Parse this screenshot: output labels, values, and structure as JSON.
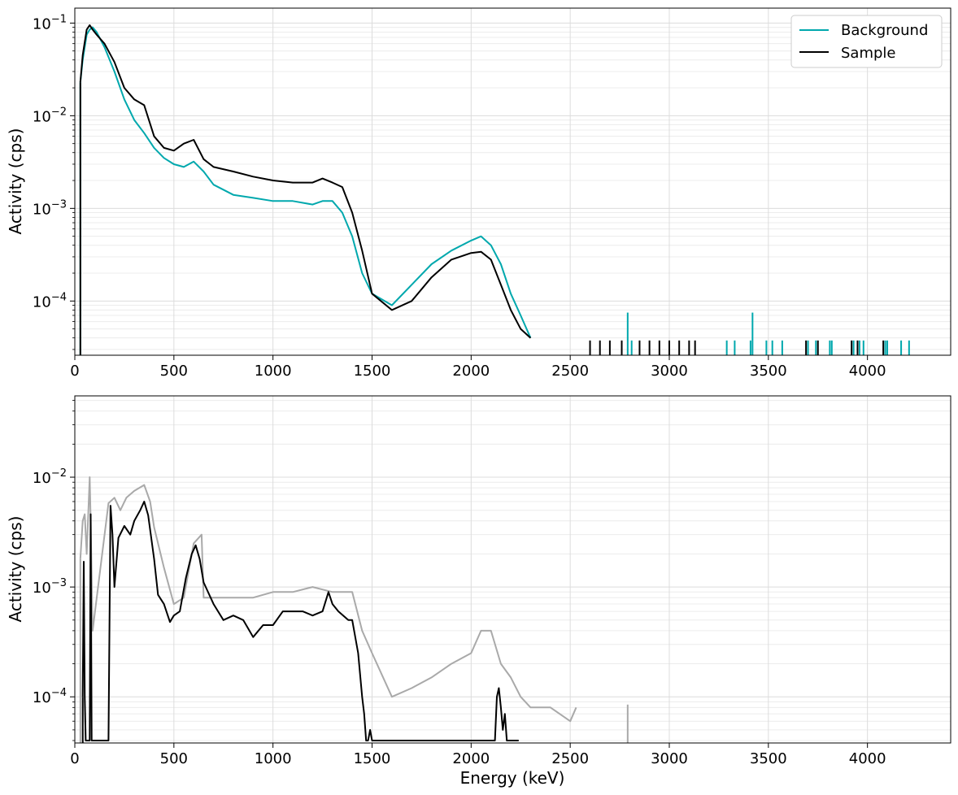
{
  "chart_data": [
    {
      "type": "line",
      "panel": "top",
      "xlabel": "",
      "ylabel": "Activity (cps)",
      "xlim": [
        0,
        4420
      ],
      "ylim": [
        2.6e-05,
        0.145
      ],
      "yscale": "log",
      "grid": true,
      "legend": "top-right",
      "x_ticks": [
        "0",
        "500",
        "1000",
        "1500",
        "2000",
        "2500",
        "3000",
        "3500",
        "4000"
      ],
      "y_ticks": [
        {
          "base": "10",
          "exp": "−1"
        },
        {
          "base": "10",
          "exp": "−2"
        },
        {
          "base": "10",
          "exp": "−3"
        },
        {
          "base": "10",
          "exp": "−4"
        }
      ],
      "series": [
        {
          "name": "Background",
          "color": "#00a8ad",
          "x": [
            28,
            40,
            60,
            75,
            90,
            110,
            150,
            200,
            250,
            300,
            350,
            400,
            450,
            500,
            550,
            600,
            650,
            700,
            800,
            900,
            1000,
            1100,
            1200,
            1250,
            1300,
            1350,
            1400,
            1450,
            1500,
            1600,
            1700,
            1800,
            1900,
            2000,
            2050,
            2100,
            2150,
            2200,
            2250,
            2300
          ],
          "values": [
            0.023,
            0.04,
            0.075,
            0.085,
            0.09,
            0.08,
            0.055,
            0.03,
            0.015,
            0.009,
            0.0065,
            0.0045,
            0.0035,
            0.003,
            0.0028,
            0.0032,
            0.0025,
            0.0018,
            0.0014,
            0.0013,
            0.0012,
            0.0012,
            0.0011,
            0.0012,
            0.0012,
            0.0009,
            0.0005,
            0.0002,
            0.00012,
            9e-05,
            0.00015,
            0.00025,
            0.00035,
            0.00045,
            0.0005,
            0.0004,
            0.00025,
            0.00012,
            7e-05,
            4e-05
          ]
        },
        {
          "name": "Sample",
          "color": "#000000",
          "x": [
            28,
            40,
            60,
            75,
            90,
            110,
            150,
            200,
            250,
            300,
            350,
            400,
            450,
            500,
            550,
            600,
            650,
            700,
            800,
            900,
            1000,
            1100,
            1200,
            1250,
            1300,
            1350,
            1400,
            1450,
            1500,
            1600,
            1700,
            1800,
            1900,
            2000,
            2050,
            2100,
            2150,
            2200,
            2250,
            2300
          ],
          "values": [
            0.023,
            0.045,
            0.085,
            0.095,
            0.085,
            0.075,
            0.06,
            0.038,
            0.02,
            0.015,
            0.013,
            0.006,
            0.0045,
            0.0042,
            0.005,
            0.0055,
            0.0034,
            0.0028,
            0.0025,
            0.0022,
            0.002,
            0.0019,
            0.0019,
            0.0021,
            0.0019,
            0.0017,
            0.0009,
            0.00035,
            0.00012,
            8e-05,
            0.0001,
            0.00018,
            0.00028,
            0.00033,
            0.00034,
            0.00028,
            0.00015,
            8e-05,
            5e-05,
            4e-05
          ]
        }
      ],
      "sparse_counts": [
        {
          "series": "Background",
          "x": [
            2790,
            2810,
            3290,
            3330,
            3410,
            3420,
            3490,
            3520,
            3570,
            3700,
            3740,
            3810,
            3820,
            3930,
            3960,
            3980,
            4090,
            4100,
            4170,
            4210
          ],
          "values": [
            7.5e-05,
            3.75e-05,
            3.75e-05,
            3.75e-05,
            3.75e-05,
            7.5e-05,
            3.75e-05,
            3.75e-05,
            3.75e-05,
            3.75e-05,
            3.75e-05,
            3.75e-05,
            3.75e-05,
            3.75e-05,
            3.75e-05,
            3.75e-05,
            3.75e-05,
            3.75e-05,
            3.75e-05,
            3.75e-05
          ]
        },
        {
          "series": "Sample",
          "x": [
            2600,
            2650,
            2700,
            2760,
            2850,
            2900,
            2950,
            3000,
            3050,
            3100,
            3130,
            3690,
            3750,
            3920,
            3950,
            4080
          ],
          "values": [
            3.75e-05,
            3.75e-05,
            3.75e-05,
            3.75e-05,
            3.75e-05,
            3.75e-05,
            3.75e-05,
            3.75e-05,
            3.75e-05,
            3.75e-05,
            3.75e-05,
            3.75e-05,
            3.75e-05,
            3.75e-05,
            3.75e-05,
            3.75e-05
          ]
        }
      ]
    },
    {
      "type": "line",
      "panel": "bottom",
      "xlabel": "Energy (keV)",
      "ylabel": "Activity (cps)",
      "xlim": [
        0,
        4420
      ],
      "ylim": [
        3.8e-05,
        0.055
      ],
      "yscale": "log",
      "grid": true,
      "x_ticks": [
        "0",
        "500",
        "1000",
        "1500",
        "2000",
        "2500",
        "3000",
        "3500",
        "4000"
      ],
      "y_ticks": [
        {
          "base": "10",
          "exp": "−2"
        },
        {
          "base": "10",
          "exp": "−3"
        },
        {
          "base": "10",
          "exp": "−4"
        }
      ],
      "series": [
        {
          "name": "",
          "color": "#a9a9a9",
          "x": [
            28,
            40,
            50,
            60,
            75,
            80,
            90,
            170,
            200,
            230,
            260,
            300,
            350,
            380,
            400,
            450,
            500,
            550,
            600,
            640,
            650,
            700,
            800,
            900,
            1000,
            1100,
            1200,
            1300,
            1350,
            1400,
            1450,
            1500,
            1600,
            1700,
            1800,
            1900,
            2000,
            2050,
            2100,
            2150,
            2200,
            2250,
            2300,
            2400,
            2500,
            2530
          ],
          "values": [
            0.0018,
            0.004,
            0.0046,
            0.002,
            0.01,
            0.004,
            0.0004,
            0.0058,
            0.0065,
            0.005,
            0.0065,
            0.0075,
            0.0085,
            0.006,
            0.0035,
            0.0015,
            0.0007,
            0.0008,
            0.0025,
            0.003,
            0.0008,
            0.0008,
            0.0008,
            0.0008,
            0.0009,
            0.0009,
            0.001,
            0.0009,
            0.0009,
            0.0009,
            0.0004,
            0.00025,
            0.0001,
            0.00012,
            0.00015,
            0.0002,
            0.00025,
            0.0004,
            0.0004,
            0.0002,
            0.00015,
            0.0001,
            8e-05,
            8e-05,
            6e-05,
            8e-05
          ]
        },
        {
          "name": "",
          "color": "#000000",
          "x": [
            40,
            45,
            50,
            55,
            75,
            80,
            85,
            170,
            180,
            190,
            200,
            220,
            250,
            280,
            300,
            330,
            350,
            370,
            400,
            420,
            450,
            480,
            500,
            530,
            560,
            590,
            610,
            630,
            650,
            700,
            750,
            800,
            850,
            900,
            950,
            1000,
            1050,
            1100,
            1150,
            1200,
            1250,
            1280,
            1300,
            1330,
            1380,
            1400,
            1430,
            1450,
            1460,
            1470,
            1480,
            1490,
            1500,
            2120,
            2130,
            2140,
            2150,
            2160,
            2170,
            2180,
            2200,
            2220,
            2240
          ],
          "values": [
            0.0001,
            0.0017,
            0.0001,
            4e-05,
            4e-05,
            0.0046,
            4e-05,
            4e-05,
            0.0055,
            0.003,
            0.001,
            0.0028,
            0.0036,
            0.003,
            0.004,
            0.005,
            0.006,
            0.0045,
            0.0018,
            0.00085,
            0.0007,
            0.00048,
            0.00055,
            0.0006,
            0.0012,
            0.002,
            0.0024,
            0.0018,
            0.0011,
            0.0007,
            0.0005,
            0.00055,
            0.0005,
            0.00035,
            0.00045,
            0.00045,
            0.0006,
            0.0006,
            0.0006,
            0.00055,
            0.0006,
            0.0009,
            0.0007,
            0.0006,
            0.0005,
            0.0005,
            0.00025,
            0.0001,
            7e-05,
            4e-05,
            4e-05,
            5e-05,
            4e-05,
            4e-05,
            0.0001,
            0.00012,
            8e-05,
            5e-05,
            7e-05,
            4e-05,
            4e-05,
            4e-05,
            4e-05
          ]
        }
      ],
      "sparse_counts": [
        {
          "series": "gray",
          "x": [
            2790
          ],
          "values": [
            8.5e-05
          ]
        }
      ]
    }
  ]
}
